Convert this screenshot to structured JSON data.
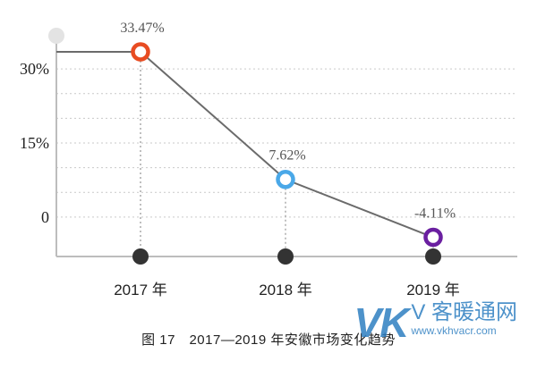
{
  "chart_data": {
    "type": "line",
    "categories": [
      "2017 年",
      "2018 年",
      "2019 年"
    ],
    "values": [
      33.47,
      7.62,
      -4.11
    ],
    "data_labels": [
      "33.47%",
      "7.62%",
      "-4.11%"
    ],
    "y_ticks": [
      {
        "value": 0,
        "label": "0"
      },
      {
        "value": 15,
        "label": "15%"
      },
      {
        "value": 30,
        "label": "30%"
      }
    ],
    "ylim": [
      -8,
      33.47
    ],
    "marker_colors": [
      "#e84c22",
      "#4aa8e8",
      "#6a1fa0"
    ],
    "line_color": "#6b6b6b",
    "grid": true,
    "caption": "图 17　2017—2019 年安徽市场变化趋势"
  },
  "watermark": {
    "logo": "VK",
    "brand": "V 客暖通网",
    "url": "www.vkhvacr.com"
  }
}
